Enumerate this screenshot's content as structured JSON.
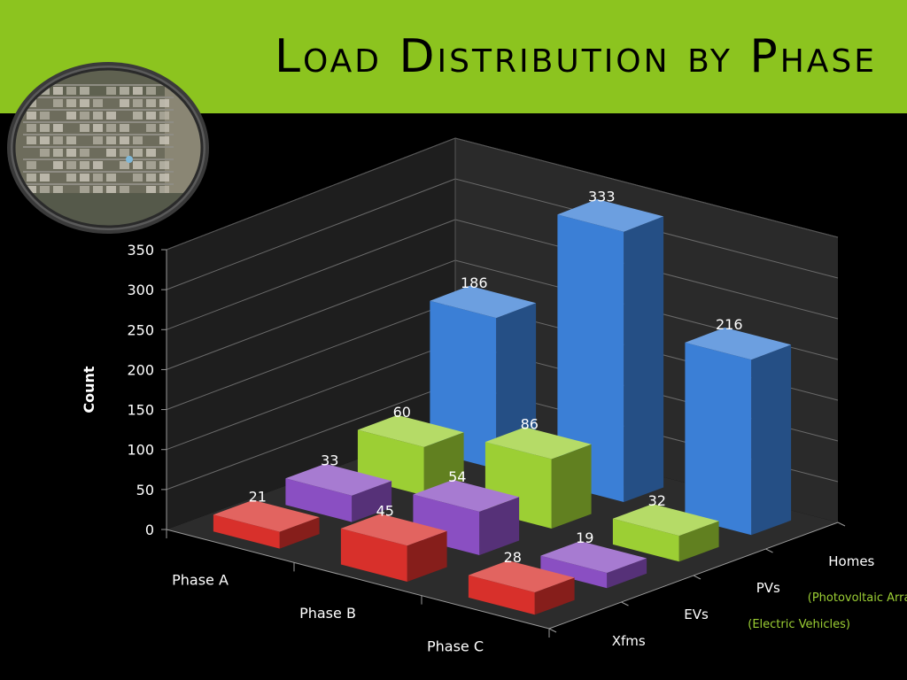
{
  "header": {
    "title": "Load Distribution by Phase"
  },
  "colors": {
    "band": "#8cc41f",
    "background": "#000000",
    "homes": "#3b7fd6",
    "pvs": "#9ccf34",
    "evs": "#8a4fc2",
    "xfms": "#d8302b",
    "note": "#9ccf34"
  },
  "photo": {
    "icon": "aerial-neighborhood-photo"
  },
  "notes": {
    "pvs": "(Photovoltaic Arrays)",
    "evs": "(Electric Vehicles)"
  },
  "chart_data": {
    "type": "bar",
    "subtype": "3d-column",
    "title": "",
    "xlabel": "",
    "ylabel": "Count",
    "ylim": [
      0,
      350
    ],
    "yticks": [
      0,
      50,
      100,
      150,
      200,
      250,
      300,
      350
    ],
    "grid": true,
    "categories": [
      "Phase A",
      "Phase B",
      "Phase C"
    ],
    "series": [
      {
        "name": "Homes",
        "values": [
          186,
          333,
          216
        ]
      },
      {
        "name": "PVs",
        "values": [
          60,
          86,
          32
        ]
      },
      {
        "name": "EVs",
        "values": [
          33,
          54,
          19
        ]
      },
      {
        "name": "Xfms",
        "values": [
          21,
          45,
          28
        ]
      }
    ]
  }
}
